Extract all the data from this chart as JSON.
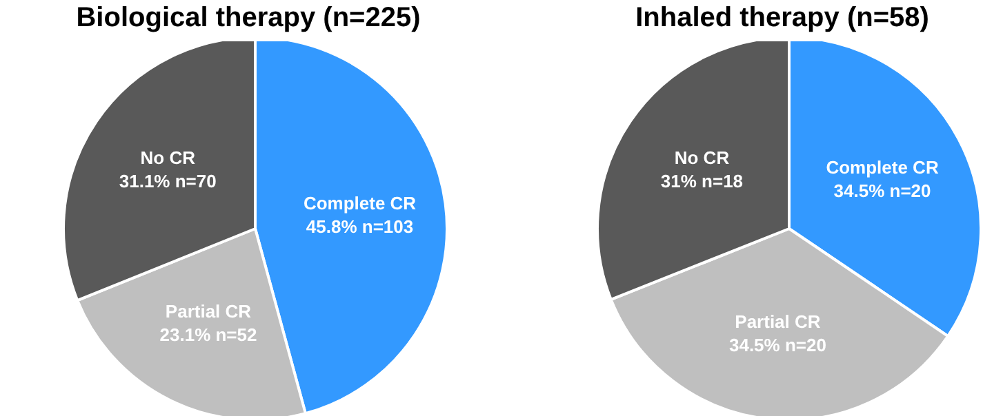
{
  "chart_data": [
    {
      "type": "pie",
      "title": "Biological therapy (n=225)",
      "categories": [
        "Complete CR",
        "Partial CR",
        "No CR"
      ],
      "values": [
        103,
        52,
        70
      ],
      "value_labels": [
        "45.8% n=103",
        "23.1% n=52",
        "31.1% n=70"
      ],
      "colors": [
        "#3399ff",
        "#bfbfbf",
        "#595959"
      ]
    },
    {
      "type": "pie",
      "title": "Inhaled therapy (n=58)",
      "categories": [
        "Complete CR",
        "Partial CR",
        "No CR"
      ],
      "values": [
        20,
        20,
        18
      ],
      "value_labels": [
        "34.5% n=20",
        "34.5% n=20",
        "31% n=18"
      ],
      "colors": [
        "#3399ff",
        "#bfbfbf",
        "#595959"
      ]
    }
  ]
}
